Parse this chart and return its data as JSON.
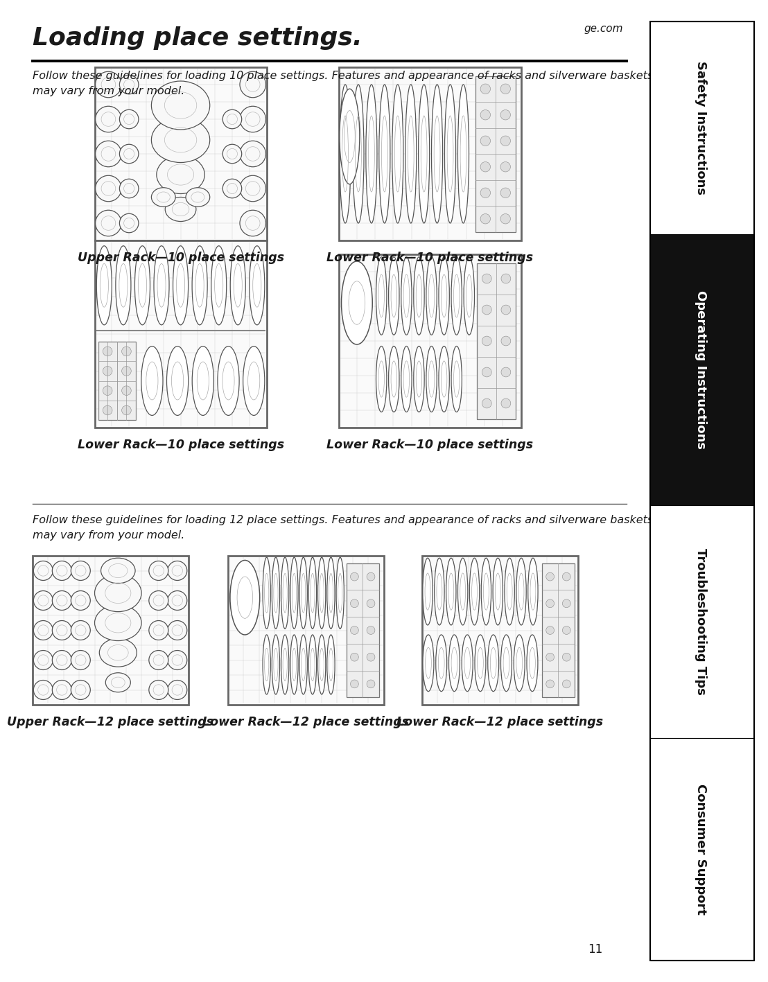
{
  "title": "Loading place settings.",
  "ge_com": "ge.com",
  "subtitle_10": "Follow these guidelines for loading 10 place settings. Features and appearance of racks and silverware baskets\nmay vary from your model.",
  "subtitle_12": "Follow these guidelines for loading 12 place settings. Features and appearance of racks and silverware baskets\nmay vary from your model.",
  "caption_upper_10": "Upper Rack—10 place settings",
  "caption_lower_10a": "Lower Rack—10 place settings",
  "caption_lower_10b": "Lower Rack—10 place settings",
  "caption_lower_10c": "Lower Rack—10 place settings",
  "caption_upper_12": "Upper Rack—12 place settings",
  "caption_lower_12a": "Lower Rack—12 place settings",
  "caption_lower_12b": "Lower Rack—12 place settings",
  "page_number": "11",
  "sidebar_labels": [
    "Safety Instructions",
    "Operating Instructions",
    "Troubleshooting Tips",
    "Consumer Support"
  ],
  "sidebar_active": 1,
  "bg_color": "#ffffff",
  "text_color": "#1a1a1a",
  "sidebar_active_bg": "#111111",
  "sidebar_active_fg": "#ffffff",
  "sidebar_inactive_bg": "#ffffff",
  "rack_wire_color": "#888888",
  "rack_frame_color": "#777777",
  "plate_edge": "#555555",
  "plate_fill": "#ffffff",
  "cup_edge": "#555555",
  "cup_fill": "#f8f8f8",
  "silverware_bg": "#e0e0e0",
  "silverware_line": "#666666",
  "title_fontsize": 26,
  "subtitle_fontsize": 11.5,
  "caption_fontsize": 12.5,
  "sidebar_fontsize": 13,
  "page_num_fontsize": 12
}
